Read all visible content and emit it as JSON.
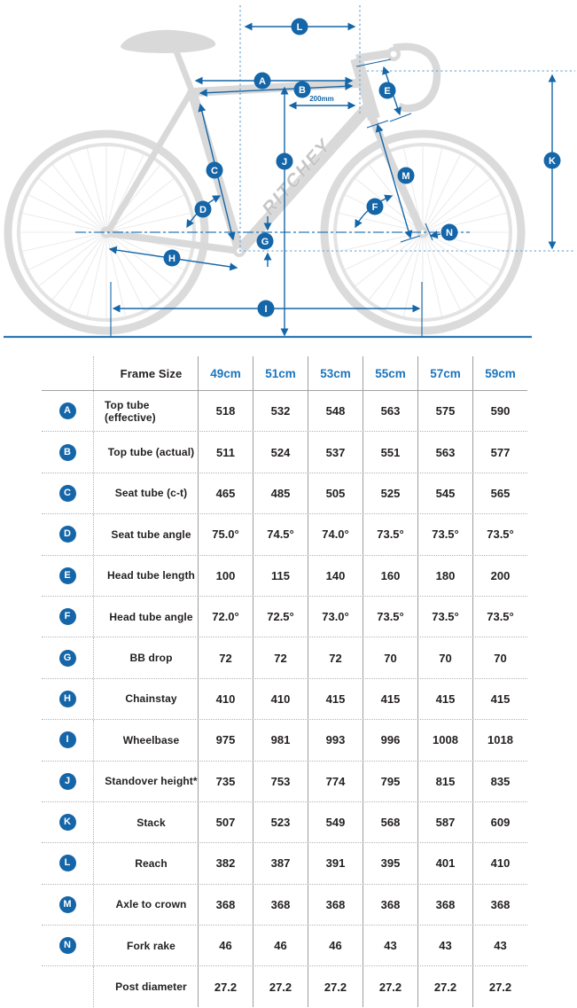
{
  "colors": {
    "dimension_blue": "#1566a8",
    "header_blue": "#1b75bc",
    "text_dark": "#231f20",
    "silhouette_grey": "#d9d9d9"
  },
  "diagram": {
    "brand": "RITCHEY",
    "ref_label": "200mm",
    "markers": [
      {
        "letter": "A"
      },
      {
        "letter": "B"
      },
      {
        "letter": "C"
      },
      {
        "letter": "D"
      },
      {
        "letter": "E"
      },
      {
        "letter": "F"
      },
      {
        "letter": "G"
      },
      {
        "letter": "H"
      },
      {
        "letter": "I"
      },
      {
        "letter": "J"
      },
      {
        "letter": "K"
      },
      {
        "letter": "L"
      },
      {
        "letter": "M"
      },
      {
        "letter": "N"
      }
    ]
  },
  "table": {
    "size_header": {
      "label": "Frame Size",
      "sizes": [
        "49cm",
        "51cm",
        "53cm",
        "55cm",
        "57cm",
        "59cm"
      ]
    },
    "rows": [
      {
        "letter": "A",
        "label": "Top tube (effective)",
        "values": [
          "518",
          "532",
          "548",
          "563",
          "575",
          "590"
        ]
      },
      {
        "letter": "B",
        "label": "Top tube (actual)",
        "values": [
          "511",
          "524",
          "537",
          "551",
          "563",
          "577"
        ]
      },
      {
        "letter": "C",
        "label": "Seat tube (c-t)",
        "values": [
          "465",
          "485",
          "505",
          "525",
          "545",
          "565"
        ]
      },
      {
        "letter": "D",
        "label": "Seat tube angle",
        "values": [
          "75.0°",
          "74.5°",
          "74.0°",
          "73.5°",
          "73.5°",
          "73.5°"
        ]
      },
      {
        "letter": "E",
        "label": "Head tube length",
        "values": [
          "100",
          "115",
          "140",
          "160",
          "180",
          "200"
        ]
      },
      {
        "letter": "F",
        "label": "Head tube angle",
        "values": [
          "72.0°",
          "72.5°",
          "73.0°",
          "73.5°",
          "73.5°",
          "73.5°"
        ]
      },
      {
        "letter": "G",
        "label": "BB drop",
        "values": [
          "72",
          "72",
          "72",
          "70",
          "70",
          "70"
        ]
      },
      {
        "letter": "H",
        "label": "Chainstay",
        "values": [
          "410",
          "410",
          "415",
          "415",
          "415",
          "415"
        ]
      },
      {
        "letter": "I",
        "label": "Wheelbase",
        "values": [
          "975",
          "981",
          "993",
          "996",
          "1008",
          "1018"
        ]
      },
      {
        "letter": "J",
        "label": "Standover height*",
        "values": [
          "735",
          "753",
          "774",
          "795",
          "815",
          "835"
        ]
      },
      {
        "letter": "K",
        "label": "Stack",
        "values": [
          "507",
          "523",
          "549",
          "568",
          "587",
          "609"
        ]
      },
      {
        "letter": "L",
        "label": "Reach",
        "values": [
          "382",
          "387",
          "391",
          "395",
          "401",
          "410"
        ]
      },
      {
        "letter": "M",
        "label": "Axle to crown",
        "values": [
          "368",
          "368",
          "368",
          "368",
          "368",
          "368"
        ]
      },
      {
        "letter": "N",
        "label": "Fork rake",
        "values": [
          "46",
          "46",
          "46",
          "43",
          "43",
          "43"
        ]
      },
      {
        "letter": "",
        "label": "Post diameter",
        "values": [
          "27.2",
          "27.2",
          "27.2",
          "27.2",
          "27.2",
          "27.2"
        ]
      }
    ]
  }
}
